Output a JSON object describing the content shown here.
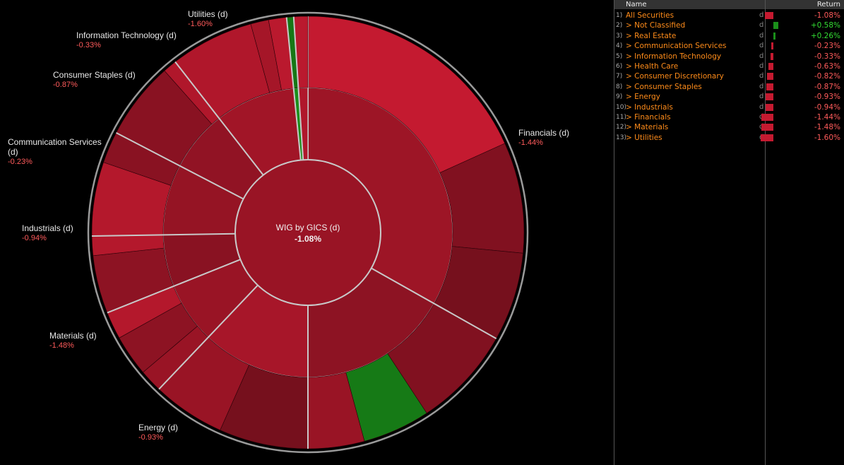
{
  "chart_data": {
    "type": "sunburst",
    "title": "WIG by GICS (d)",
    "total_return": "-1.08%",
    "sectors": [
      {
        "name": "Financials (d)",
        "return": "-1.44%",
        "share": 31.5
      },
      {
        "name": "Energy (d)",
        "return": "-0.93%",
        "share": 16.0
      },
      {
        "name": "Materials (d)",
        "return": "-1.48%",
        "share": 11.5
      },
      {
        "name": "Industrials (d)",
        "return": "-0.94%",
        "share": 6.5
      },
      {
        "name": "Communication Services (d)",
        "return": "-0.23%",
        "share": 5.5
      },
      {
        "name": "Consumer Staples (d)",
        "return": "-0.87%",
        "share": 7.5
      },
      {
        "name": "Information Technology (d)",
        "return": "-0.33%",
        "share": 6.5
      },
      {
        "name": "Utilities (d)",
        "return": "-1.60%",
        "share": 8.5
      },
      {
        "name": "Real Estate (d)",
        "return": "+0.26%",
        "share": 0.5
      },
      {
        "name": "Health Care (d)",
        "return": "-0.63%",
        "share": 1.0
      }
    ]
  },
  "table": {
    "headers": {
      "name": "Name",
      "return": "Return"
    },
    "rows": [
      {
        "idx": "1)",
        "name": "All Securities",
        "flag": "d",
        "return": "-1.08%",
        "value": -1.08
      },
      {
        "idx": "2)",
        "name": "> Not Classified",
        "flag": "d",
        "return": "+0.58%",
        "value": 0.58
      },
      {
        "idx": "3)",
        "name": "> Real Estate",
        "flag": "d",
        "return": "+0.26%",
        "value": 0.26
      },
      {
        "idx": "4)",
        "name": "> Communication Services",
        "flag": "d",
        "return": "-0.23%",
        "value": -0.23
      },
      {
        "idx": "5)",
        "name": "> Information Technology",
        "flag": "d",
        "return": "-0.33%",
        "value": -0.33
      },
      {
        "idx": "6)",
        "name": "> Health Care",
        "flag": "d",
        "return": "-0.63%",
        "value": -0.63
      },
      {
        "idx": "7)",
        "name": "> Consumer Discretionary",
        "flag": "d",
        "return": "-0.82%",
        "value": -0.82
      },
      {
        "idx": "8)",
        "name": "> Consumer Staples",
        "flag": "d",
        "return": "-0.87%",
        "value": -0.87
      },
      {
        "idx": "9)",
        "name": "> Energy",
        "flag": "d",
        "return": "-0.93%",
        "value": -0.93
      },
      {
        "idx": "10)",
        "name": "> Industrials",
        "flag": "d",
        "return": "-0.94%",
        "value": -0.94
      },
      {
        "idx": "11)",
        "name": "> Financials",
        "flag": "d",
        "return": "-1.44%",
        "value": -1.44
      },
      {
        "idx": "12)",
        "name": "> Materials",
        "flag": "d",
        "return": "-1.48%",
        "value": -1.48
      },
      {
        "idx": "13)",
        "name": "> Utilities",
        "flag": "d",
        "return": "-1.60%",
        "value": -1.6
      }
    ]
  },
  "colors": {
    "negative": "#c41a30",
    "positive": "#1a8f1a",
    "neg_text": "#ff5b5b",
    "pos_text": "#33dd33",
    "name_text": "#ff8c1a"
  }
}
